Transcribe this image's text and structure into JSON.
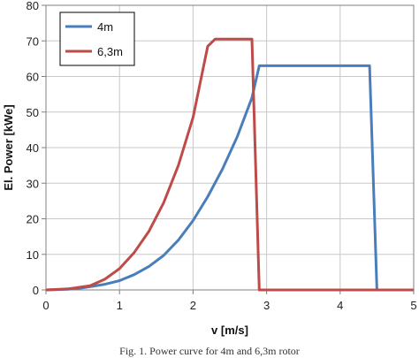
{
  "caption": "Fig. 1. Power curve for 4m and 6,3m rotor",
  "chart_data": {
    "type": "line",
    "title": "",
    "xlabel": "v [m/s]",
    "ylabel": "El. Power [kWe]",
    "xlim": [
      0,
      5
    ],
    "ylim": [
      0,
      80
    ],
    "xticks": [
      0,
      1,
      2,
      3,
      4,
      5
    ],
    "yticks": [
      0,
      10,
      20,
      30,
      40,
      50,
      60,
      70,
      80
    ],
    "grid": true,
    "legend_position": "top-left",
    "series": [
      {
        "name": "4m",
        "color": "#4a7ebb",
        "x": [
          0,
          0.3,
          0.5,
          0.8,
          1.0,
          1.2,
          1.4,
          1.6,
          1.8,
          2.0,
          2.2,
          2.4,
          2.6,
          2.8,
          2.9,
          3.0,
          3.5,
          4.0,
          4.4,
          4.5,
          5.0
        ],
        "y": [
          0,
          0.2,
          0.6,
          1.6,
          2.6,
          4.3,
          6.6,
          9.7,
          14.0,
          19.5,
          26.2,
          34.0,
          43.0,
          54.0,
          63.0,
          63.0,
          63.0,
          63.0,
          63.0,
          0,
          0
        ]
      },
      {
        "name": "6,3m",
        "color": "#be4b48",
        "x": [
          0,
          0.3,
          0.6,
          0.8,
          1.0,
          1.2,
          1.4,
          1.6,
          1.8,
          2.0,
          2.2,
          2.3,
          2.5,
          2.8,
          2.9,
          3.0,
          4.0,
          5.0
        ],
        "y": [
          0,
          0.3,
          1.2,
          3.0,
          6.0,
          10.5,
          16.5,
          24.5,
          35.0,
          48.5,
          68.5,
          70.5,
          70.5,
          70.5,
          0,
          0,
          0,
          0
        ]
      }
    ]
  }
}
